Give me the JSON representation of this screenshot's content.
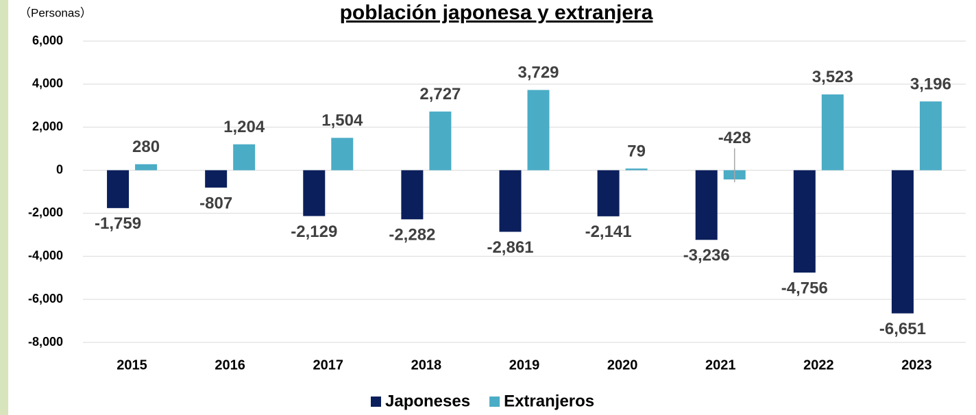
{
  "chart_data": {
    "type": "bar",
    "title": "población japonesa y extranjera",
    "y_axis_label": "（Personas）",
    "categories": [
      "2015",
      "2016",
      "2017",
      "2018",
      "2019",
      "2020",
      "2021",
      "2022",
      "2023"
    ],
    "series": [
      {
        "name": "Japoneses",
        "color": "#0b1f5c",
        "values": [
          -1759,
          -807,
          -2129,
          -2282,
          -2861,
          -2141,
          -3236,
          -4756,
          -6651
        ],
        "value_labels": [
          "-1,759",
          "-807",
          "-2,129",
          "-2,282",
          "-2,861",
          "-2,141",
          "-3,236",
          "-4,756",
          "-6,651"
        ]
      },
      {
        "name": "Extranjeros",
        "color": "#4bacc6",
        "values": [
          280,
          1204,
          1504,
          2727,
          3729,
          79,
          -428,
          3523,
          3196
        ],
        "value_labels": [
          "280",
          "1,204",
          "1,504",
          "2,727",
          "3,729",
          "79",
          "-428",
          "3,523",
          "3,196"
        ]
      }
    ],
    "ylim": [
      -8000,
      6000
    ],
    "yticks": [
      {
        "value": -8000,
        "label": "-8,000"
      },
      {
        "value": -6000,
        "label": "-6,000"
      },
      {
        "value": -4000,
        "label": "-4,000"
      },
      {
        "value": -2000,
        "label": "-2,000"
      },
      0,
      {
        "value": 2000,
        "label": "2,000"
      },
      {
        "value": 4000,
        "label": "4,000"
      },
      {
        "value": 6000,
        "label": "6,000"
      }
    ],
    "grid": true,
    "legend": "bottom"
  }
}
